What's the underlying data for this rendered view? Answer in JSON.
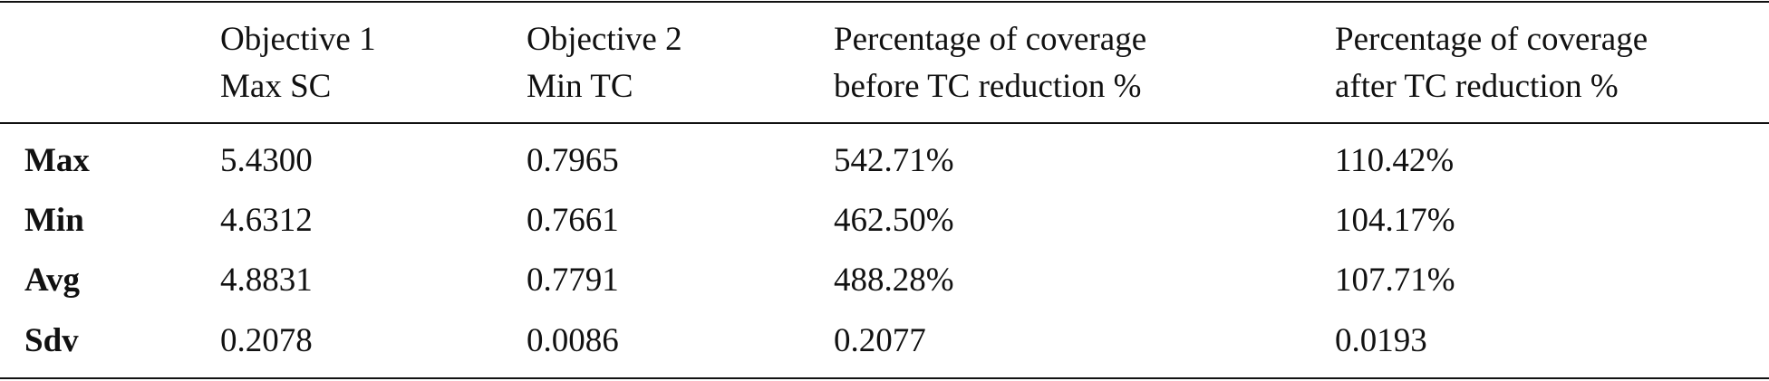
{
  "table": {
    "header": [
      [
        "Objective 1",
        "Max SC"
      ],
      [
        "Objective 2",
        "Min TC"
      ],
      [
        "Percentage of coverage",
        "before TC reduction %"
      ],
      [
        "Percentage of coverage",
        "after TC reduction %"
      ]
    ],
    "rows": [
      [
        "Max",
        "5.4300",
        "0.7965",
        "542.71%",
        "110.42%"
      ],
      [
        "Min",
        "4.6312",
        "0.7661",
        "462.50%",
        "104.17%"
      ],
      [
        "Avg",
        "4.8831",
        "0.7791",
        "488.28%",
        "107.71%"
      ],
      [
        "Sdv",
        "0.2078",
        "0.0086",
        "0.2077",
        "0.0193"
      ]
    ]
  }
}
